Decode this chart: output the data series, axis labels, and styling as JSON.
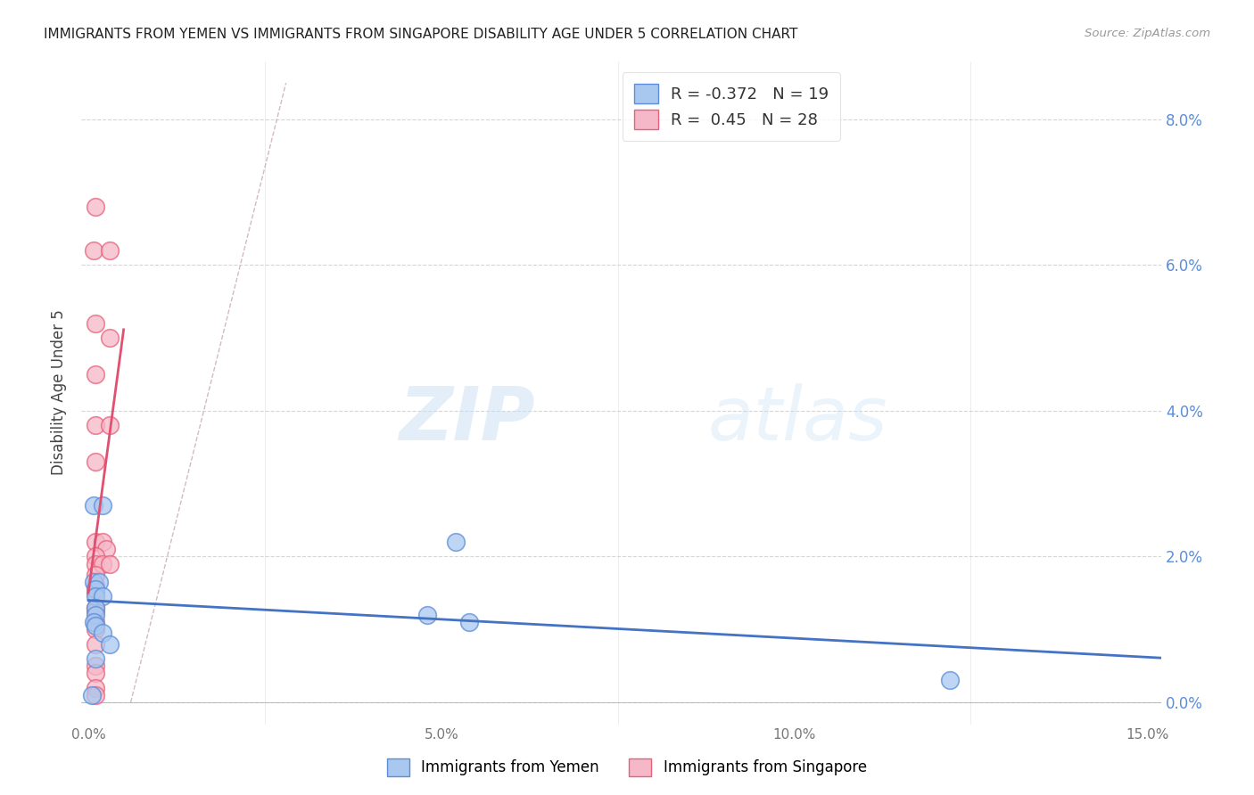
{
  "title": "IMMIGRANTS FROM YEMEN VS IMMIGRANTS FROM SINGAPORE DISABILITY AGE UNDER 5 CORRELATION CHART",
  "source": "Source: ZipAtlas.com",
  "ylabel": "Disability Age Under 5",
  "legend_label_blue": "Immigrants from Yemen",
  "legend_label_pink": "Immigrants from Singapore",
  "R_blue": -0.372,
  "N_blue": 19,
  "R_pink": 0.45,
  "N_pink": 28,
  "xlim": [
    -0.001,
    0.152
  ],
  "ylim": [
    -0.003,
    0.088
  ],
  "yticks": [
    0.0,
    0.02,
    0.04,
    0.06,
    0.08
  ],
  "xticks": [
    0.0,
    0.05,
    0.1,
    0.15
  ],
  "watermark_zip": "ZIP",
  "watermark_atlas": "atlas",
  "blue_points": [
    [
      0.0008,
      0.0165
    ],
    [
      0.0015,
      0.0165
    ],
    [
      0.001,
      0.0155
    ],
    [
      0.001,
      0.0145
    ],
    [
      0.002,
      0.0145
    ],
    [
      0.0008,
      0.027
    ],
    [
      0.002,
      0.027
    ],
    [
      0.001,
      0.013
    ],
    [
      0.001,
      0.012
    ],
    [
      0.0008,
      0.011
    ],
    [
      0.001,
      0.0105
    ],
    [
      0.002,
      0.0095
    ],
    [
      0.003,
      0.008
    ],
    [
      0.001,
      0.006
    ],
    [
      0.052,
      0.022
    ],
    [
      0.048,
      0.012
    ],
    [
      0.054,
      0.011
    ],
    [
      0.122,
      0.003
    ],
    [
      0.0005,
      0.001
    ]
  ],
  "pink_points": [
    [
      0.001,
      0.068
    ],
    [
      0.0008,
      0.062
    ],
    [
      0.003,
      0.062
    ],
    [
      0.001,
      0.052
    ],
    [
      0.003,
      0.05
    ],
    [
      0.001,
      0.045
    ],
    [
      0.001,
      0.038
    ],
    [
      0.003,
      0.038
    ],
    [
      0.001,
      0.033
    ],
    [
      0.001,
      0.022
    ],
    [
      0.002,
      0.022
    ],
    [
      0.0025,
      0.021
    ],
    [
      0.001,
      0.02
    ],
    [
      0.001,
      0.019
    ],
    [
      0.002,
      0.019
    ],
    [
      0.003,
      0.019
    ],
    [
      0.001,
      0.0175
    ],
    [
      0.001,
      0.016
    ],
    [
      0.001,
      0.015
    ],
    [
      0.001,
      0.013
    ],
    [
      0.001,
      0.0125
    ],
    [
      0.001,
      0.011
    ],
    [
      0.001,
      0.01
    ],
    [
      0.001,
      0.008
    ],
    [
      0.001,
      0.005
    ],
    [
      0.001,
      0.004
    ],
    [
      0.001,
      0.002
    ],
    [
      0.001,
      0.001
    ]
  ],
  "blue_color": "#a8c8f0",
  "pink_color": "#f5b8c8",
  "blue_edge_color": "#5b8dd9",
  "pink_edge_color": "#e8607a",
  "blue_line_color": "#4472c4",
  "pink_line_color": "#e05070",
  "diagonal_color": "#c8a8b8",
  "background": "#ffffff",
  "grid_color": "#cccccc",
  "right_tick_color": "#5b8dd9",
  "left_tick_color": "#aaaaaa"
}
